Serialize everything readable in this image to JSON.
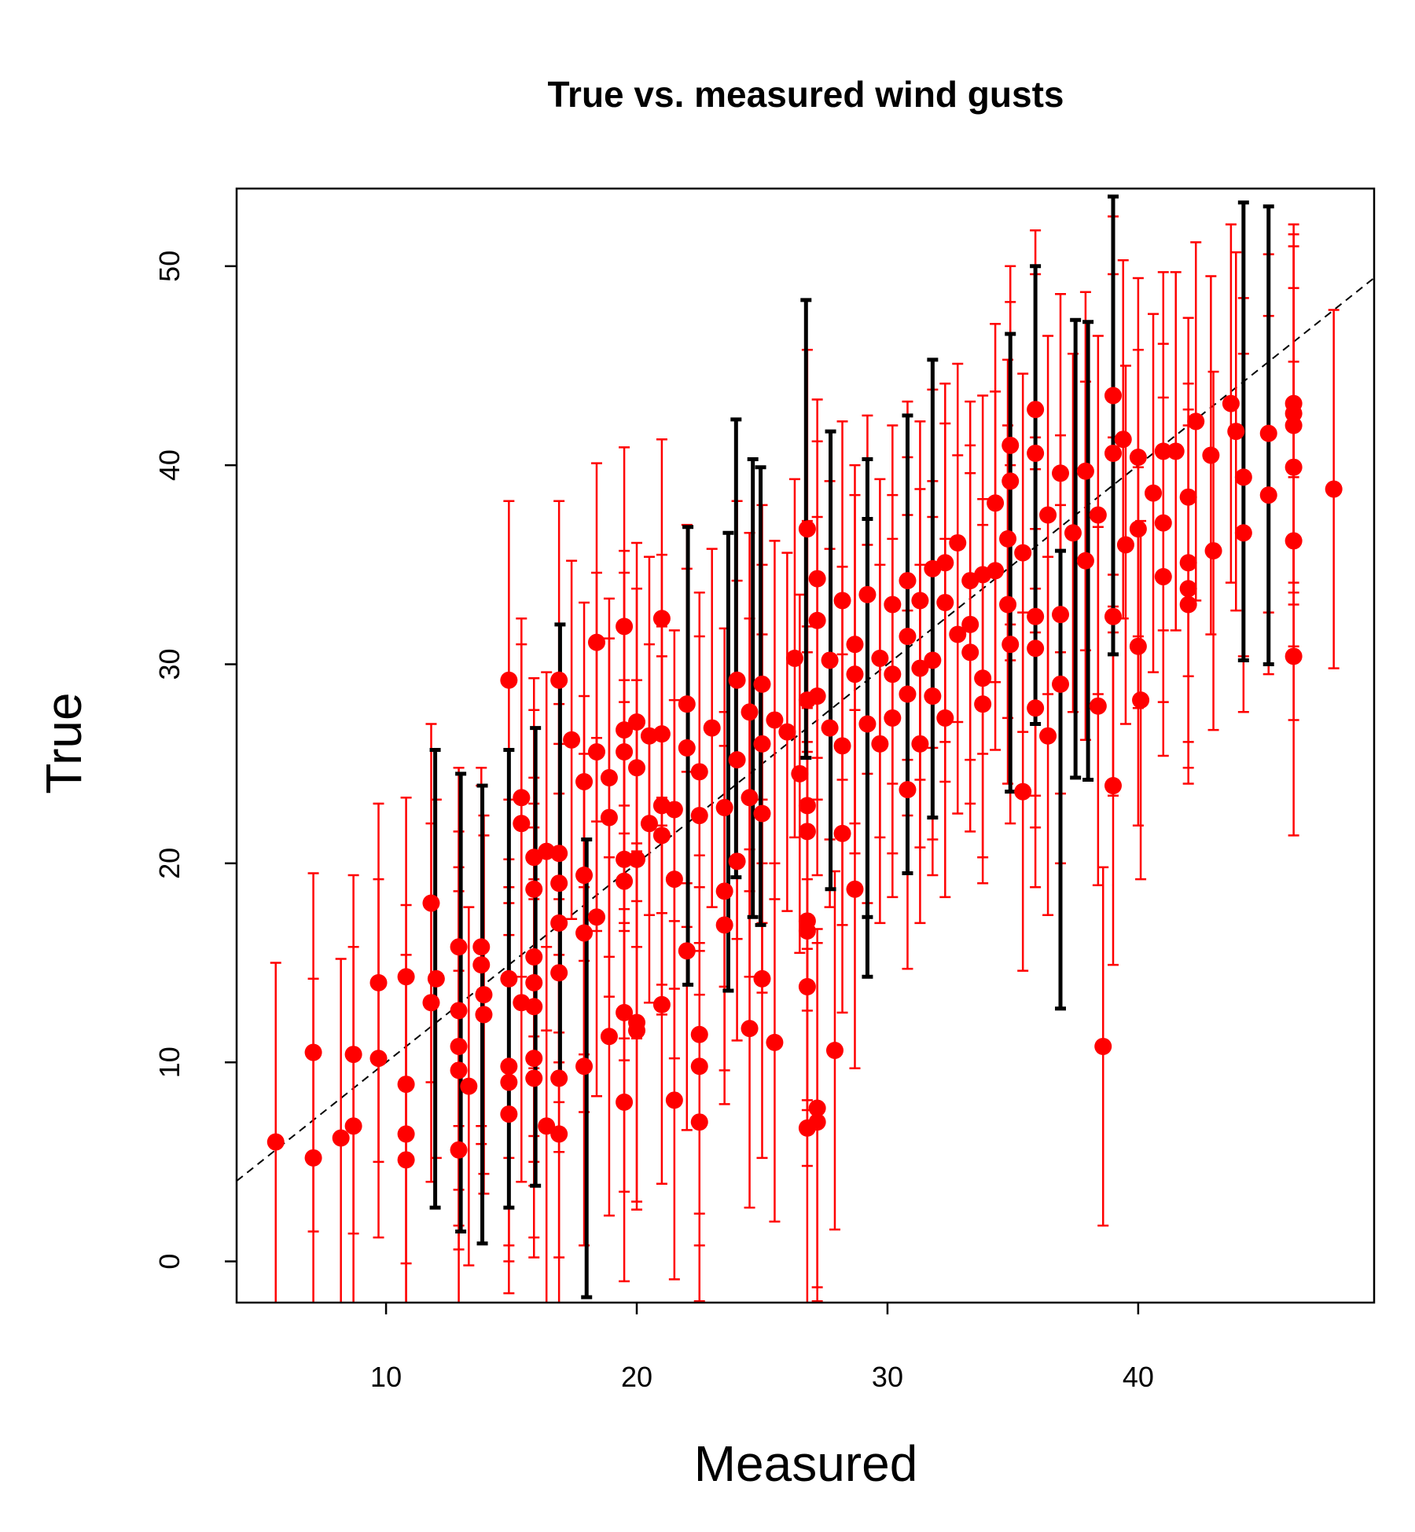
{
  "chart_data": {
    "type": "errorbar-scatter",
    "title": "True vs. measured wind gusts",
    "x_label": "Measured",
    "y_label": "True",
    "xlim": [
      4.04,
      49.41
    ],
    "ylim": [
      -2.07,
      53.9
    ],
    "xticks": [
      10,
      20,
      30,
      40
    ],
    "yticks": [
      0,
      10,
      20,
      30,
      40,
      50
    ],
    "reference_line": {
      "slope": 1,
      "intercept": 0,
      "color": "#000000"
    },
    "series": [
      {
        "color": "#ff0000",
        "marker_color": "#ff0000",
        "markers": true,
        "error": 9,
        "x": [
          5.6,
          7.1,
          7.1,
          8.2,
          8.7,
          8.7,
          9.7,
          9.7,
          10.8,
          10.8,
          10.8,
          10.8,
          11.8,
          11.8,
          12.0,
          12.9,
          12.9,
          12.9,
          12.9,
          12.9,
          13.3,
          13.8,
          13.8,
          13.9,
          13.9,
          14.9,
          14.9,
          14.9,
          14.9,
          14.9,
          15.4,
          15.4,
          15.4,
          15.9,
          15.9,
          15.9,
          15.9,
          15.9,
          15.9,
          15.9,
          16.4,
          16.4,
          16.9,
          16.9,
          16.9,
          16.9,
          16.9,
          16.9,
          16.9,
          17.4,
          17.9,
          17.9,
          17.9,
          17.9,
          18.4,
          18.4,
          18.4,
          18.9,
          18.9,
          18.9,
          19.5,
          19.5,
          19.5,
          19.5,
          19.5,
          19.5,
          19.5,
          20.0,
          20.0,
          20.0,
          20.0,
          20.0,
          20.5,
          20.5,
          21.0,
          21.0,
          21.0,
          21.0,
          21.0,
          21.5,
          21.5,
          21.5,
          22.0,
          22.0,
          22.0,
          22.5,
          22.5,
          22.5,
          22.5,
          22.5,
          23.0,
          23.5,
          23.5,
          23.5,
          24.0,
          24.0,
          24.0,
          24.5,
          24.5,
          24.5,
          25.0,
          25.0,
          25.0,
          25.0,
          25.5,
          25.5,
          26.0,
          26.3,
          26.5,
          26.8,
          26.8,
          26.8,
          26.8,
          26.8,
          26.8,
          26.8,
          26.8,
          27.2,
          27.2,
          27.2,
          27.2,
          27.2,
          27.7,
          27.7,
          27.9,
          28.2,
          28.2,
          28.2,
          28.7,
          28.7,
          28.7,
          29.2,
          29.2,
          29.7,
          29.7,
          30.2,
          30.2,
          30.2,
          30.8,
          30.8,
          30.8,
          30.8,
          31.3,
          31.3,
          31.3,
          31.8,
          31.8,
          31.8,
          32.3,
          32.3,
          32.3,
          32.8,
          32.8,
          33.3,
          33.3,
          33.3,
          33.8,
          33.8,
          33.8,
          34.3,
          34.3,
          34.8,
          34.8,
          34.9,
          34.9,
          34.9,
          35.4,
          35.4,
          35.9,
          35.9,
          35.9,
          35.9,
          35.9,
          36.4,
          36.4,
          36.9,
          36.9,
          36.9,
          37.4,
          37.9,
          37.9,
          38.4,
          38.4,
          38.6,
          39.0,
          39.0,
          39.0,
          39.0,
          39.4,
          39.5,
          40.0,
          40.0,
          40.0,
          40.1,
          40.6,
          41.0,
          41.0,
          41.0,
          41.5,
          42.0,
          42.0,
          42.0,
          42.0,
          42.3,
          42.9,
          43.0,
          43.7,
          43.9,
          44.2,
          44.2,
          45.2,
          45.2,
          46.2,
          46.2,
          46.2,
          46.2,
          46.2,
          46.2,
          47.8
        ],
        "values": [
          6.0,
          10.5,
          5.2,
          6.2,
          10.4,
          6.8,
          14.0,
          10.2,
          14.3,
          8.9,
          6.4,
          5.1,
          18.0,
          13.0,
          14.2,
          15.8,
          12.6,
          10.8,
          9.6,
          5.6,
          8.8,
          15.8,
          14.9,
          13.4,
          12.4,
          29.2,
          14.2,
          9.8,
          9.0,
          7.4,
          23.3,
          22.0,
          13.0,
          20.3,
          18.7,
          15.3,
          14.0,
          12.8,
          10.2,
          9.2,
          20.6,
          6.8,
          29.2,
          20.5,
          19.0,
          17.0,
          14.5,
          9.2,
          6.4,
          26.2,
          24.1,
          19.4,
          16.5,
          9.8,
          31.1,
          25.6,
          17.3,
          24.3,
          22.3,
          11.3,
          31.9,
          26.7,
          25.6,
          20.2,
          19.1,
          12.5,
          8.0,
          27.1,
          24.8,
          20.2,
          12.0,
          11.6,
          26.4,
          22.0,
          32.3,
          26.5,
          22.9,
          21.4,
          12.9,
          22.7,
          19.2,
          8.1,
          28.0,
          25.8,
          15.6,
          24.6,
          22.4,
          11.4,
          9.8,
          7.0,
          26.8,
          22.8,
          18.6,
          16.9,
          29.2,
          25.2,
          20.1,
          27.6,
          23.3,
          11.7,
          29.0,
          26.0,
          22.5,
          14.2,
          27.2,
          11.0,
          26.6,
          30.3,
          24.5,
          36.8,
          28.2,
          22.9,
          21.6,
          17.1,
          16.6,
          13.8,
          6.7,
          34.3,
          32.2,
          28.4,
          7.7,
          7.0,
          30.2,
          26.8,
          10.6,
          33.2,
          25.9,
          21.5,
          31.0,
          29.5,
          18.7,
          33.5,
          27.0,
          30.3,
          26.0,
          33.0,
          29.5,
          27.3,
          34.2,
          31.4,
          28.5,
          23.7,
          33.2,
          29.8,
          26.0,
          34.8,
          30.2,
          28.4,
          35.1,
          33.1,
          27.3,
          36.1,
          31.5,
          34.2,
          32.0,
          30.6,
          34.5,
          29.3,
          28.0,
          38.1,
          34.7,
          36.3,
          33.0,
          41.0,
          39.2,
          31.0,
          35.6,
          23.6,
          42.8,
          40.6,
          32.4,
          30.8,
          27.8,
          37.5,
          26.4,
          39.6,
          32.5,
          29.0,
          36.6,
          39.7,
          35.2,
          37.5,
          27.9,
          10.8,
          43.5,
          40.6,
          32.4,
          23.9,
          41.3,
          36.0,
          40.4,
          36.8,
          30.9,
          28.2,
          38.6,
          40.7,
          37.1,
          34.4,
          40.7,
          38.4,
          35.1,
          33.8,
          33.0,
          42.2,
          40.5,
          35.7,
          43.1,
          41.7,
          39.4,
          36.6,
          41.6,
          38.5,
          43.1,
          42.6,
          42.0,
          39.9,
          36.2,
          30.4,
          38.8
        ]
      },
      {
        "color": "#000000",
        "marker_color": "#ff0000",
        "markers": false,
        "error": 11.5,
        "x": [
          11.96,
          12.98,
          13.84,
          14.9,
          15.96,
          16.94,
          18.0,
          22.04,
          23.65,
          23.96,
          24.63,
          24.94,
          26.75,
          27.73,
          29.2,
          29.2,
          30.8,
          31.8,
          34.9,
          35.9,
          36.9,
          37.5,
          38.0,
          39.0,
          44.2,
          45.2
        ],
        "values": [
          14.2,
          13.0,
          12.4,
          14.2,
          15.3,
          20.5,
          9.7,
          25.4,
          25.1,
          30.8,
          28.8,
          28.4,
          36.8,
          30.2,
          28.8,
          25.8,
          31.0,
          33.8,
          35.1,
          38.5,
          24.2,
          35.8,
          35.7,
          42.0,
          41.7,
          41.5
        ]
      }
    ]
  }
}
